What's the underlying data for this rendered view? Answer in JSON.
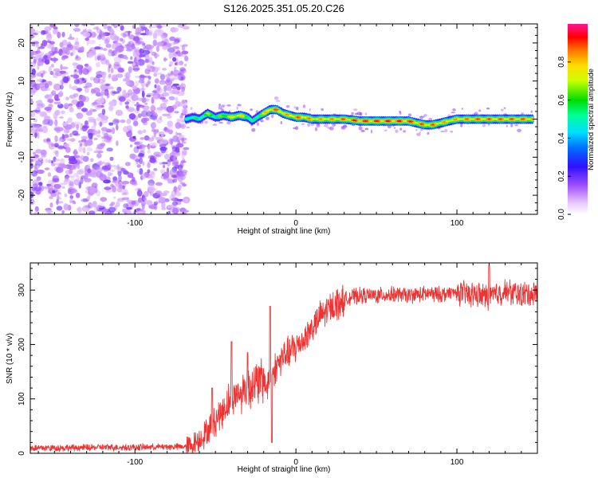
{
  "title": "S126.2025.351.05.20.C26",
  "chart_data": [
    {
      "type": "heatmap",
      "title": "S126.2025.351.05.20.C26",
      "xlabel": "Height of straight line (km)",
      "ylabel": "Frequency (Hz)",
      "xlim": [
        -165,
        150
      ],
      "ylim": [
        -25,
        25
      ],
      "xticks": [
        -100,
        0,
        100
      ],
      "yticks": [
        -20,
        -10,
        0,
        10,
        20
      ],
      "colorbar": {
        "label": "Normalized spectral amplitude",
        "range": [
          0.0,
          1.0
        ],
        "ticks": [
          0.0,
          0.2,
          0.4,
          0.6,
          0.8
        ],
        "colormap": [
          "#ffffff",
          "#e0b0ff",
          "#8a2be2",
          "#0000ff",
          "#00ccff",
          "#00ffaa",
          "#00e000",
          "#ffff00",
          "#ff8800",
          "#ff0000",
          "#ff1493"
        ]
      },
      "noise_region": {
        "x_from": -165,
        "x_to": -68,
        "note": "scattered low amplitude spectral noise"
      },
      "ridge": {
        "x": [
          -68,
          -64,
          -60,
          -55,
          -50,
          -45,
          -40,
          -35,
          -30,
          -27,
          -24,
          -20,
          -16,
          -12,
          -8,
          -4,
          0,
          5,
          10,
          20,
          30,
          40,
          50,
          60,
          70,
          75,
          80,
          85,
          90,
          95,
          100,
          110,
          120,
          130,
          140,
          148
        ],
        "f": [
          0.0,
          0.5,
          0.0,
          1.5,
          0.5,
          1.0,
          0.5,
          1.0,
          0.5,
          -0.5,
          0.5,
          1.5,
          2.5,
          2.5,
          1.5,
          1.0,
          0.5,
          0.5,
          0.0,
          0.0,
          0.0,
          -0.5,
          -0.5,
          -0.5,
          -0.5,
          -1.0,
          -1.5,
          -1.5,
          -1.0,
          -0.5,
          0.0,
          0.0,
          0.0,
          0.0,
          0.0,
          0.0
        ],
        "amp": [
          0.5,
          0.6,
          0.55,
          0.7,
          0.6,
          0.7,
          0.8,
          0.85,
          0.7,
          0.5,
          0.6,
          0.8,
          0.9,
          0.9,
          0.85,
          0.85,
          0.9,
          0.9,
          0.85,
          0.85,
          0.9,
          0.95,
          0.95,
          0.95,
          0.95,
          0.9,
          0.9,
          0.9,
          0.85,
          0.85,
          0.85,
          0.9,
          0.9,
          0.9,
          0.9,
          0.9
        ]
      }
    },
    {
      "type": "line",
      "xlabel": "Height of straight line (km)",
      "ylabel": "SNR (10 * v/v)",
      "xlim": [
        -165,
        150
      ],
      "ylim": [
        0,
        350
      ],
      "xticks": [
        -100,
        0,
        100
      ],
      "yticks": [
        0,
        100,
        200,
        300
      ],
      "color": "#ee3333",
      "series": [
        {
          "name": "SNR",
          "x": [
            -165,
            -140,
            -120,
            -100,
            -80,
            -70,
            -65,
            -60,
            -55,
            -50,
            -45,
            -42,
            -40,
            -35,
            -30,
            -25,
            -20,
            -18,
            -16,
            -14,
            -10,
            -5,
            0,
            5,
            10,
            15,
            20,
            25,
            30,
            35,
            40,
            50,
            60,
            70,
            80,
            90,
            100,
            110,
            120,
            130,
            140,
            150
          ],
          "y": [
            10,
            10,
            11,
            11,
            12,
            12,
            15,
            25,
            40,
            60,
            80,
            95,
            100,
            110,
            120,
            128,
            135,
            120,
            140,
            150,
            170,
            185,
            195,
            210,
            230,
            250,
            265,
            275,
            282,
            288,
            290,
            290,
            292,
            290,
            293,
            292,
            295,
            292,
            288,
            298,
            292,
            295
          ]
        }
      ],
      "spikes": [
        {
          "x": -52,
          "y": 120
        },
        {
          "x": -40,
          "y": 205
        },
        {
          "x": -30,
          "y": 185
        },
        {
          "x": -16,
          "y": 270
        },
        {
          "x": -15,
          "y": 20
        },
        {
          "x": 120,
          "y": 345
        }
      ]
    }
  ]
}
